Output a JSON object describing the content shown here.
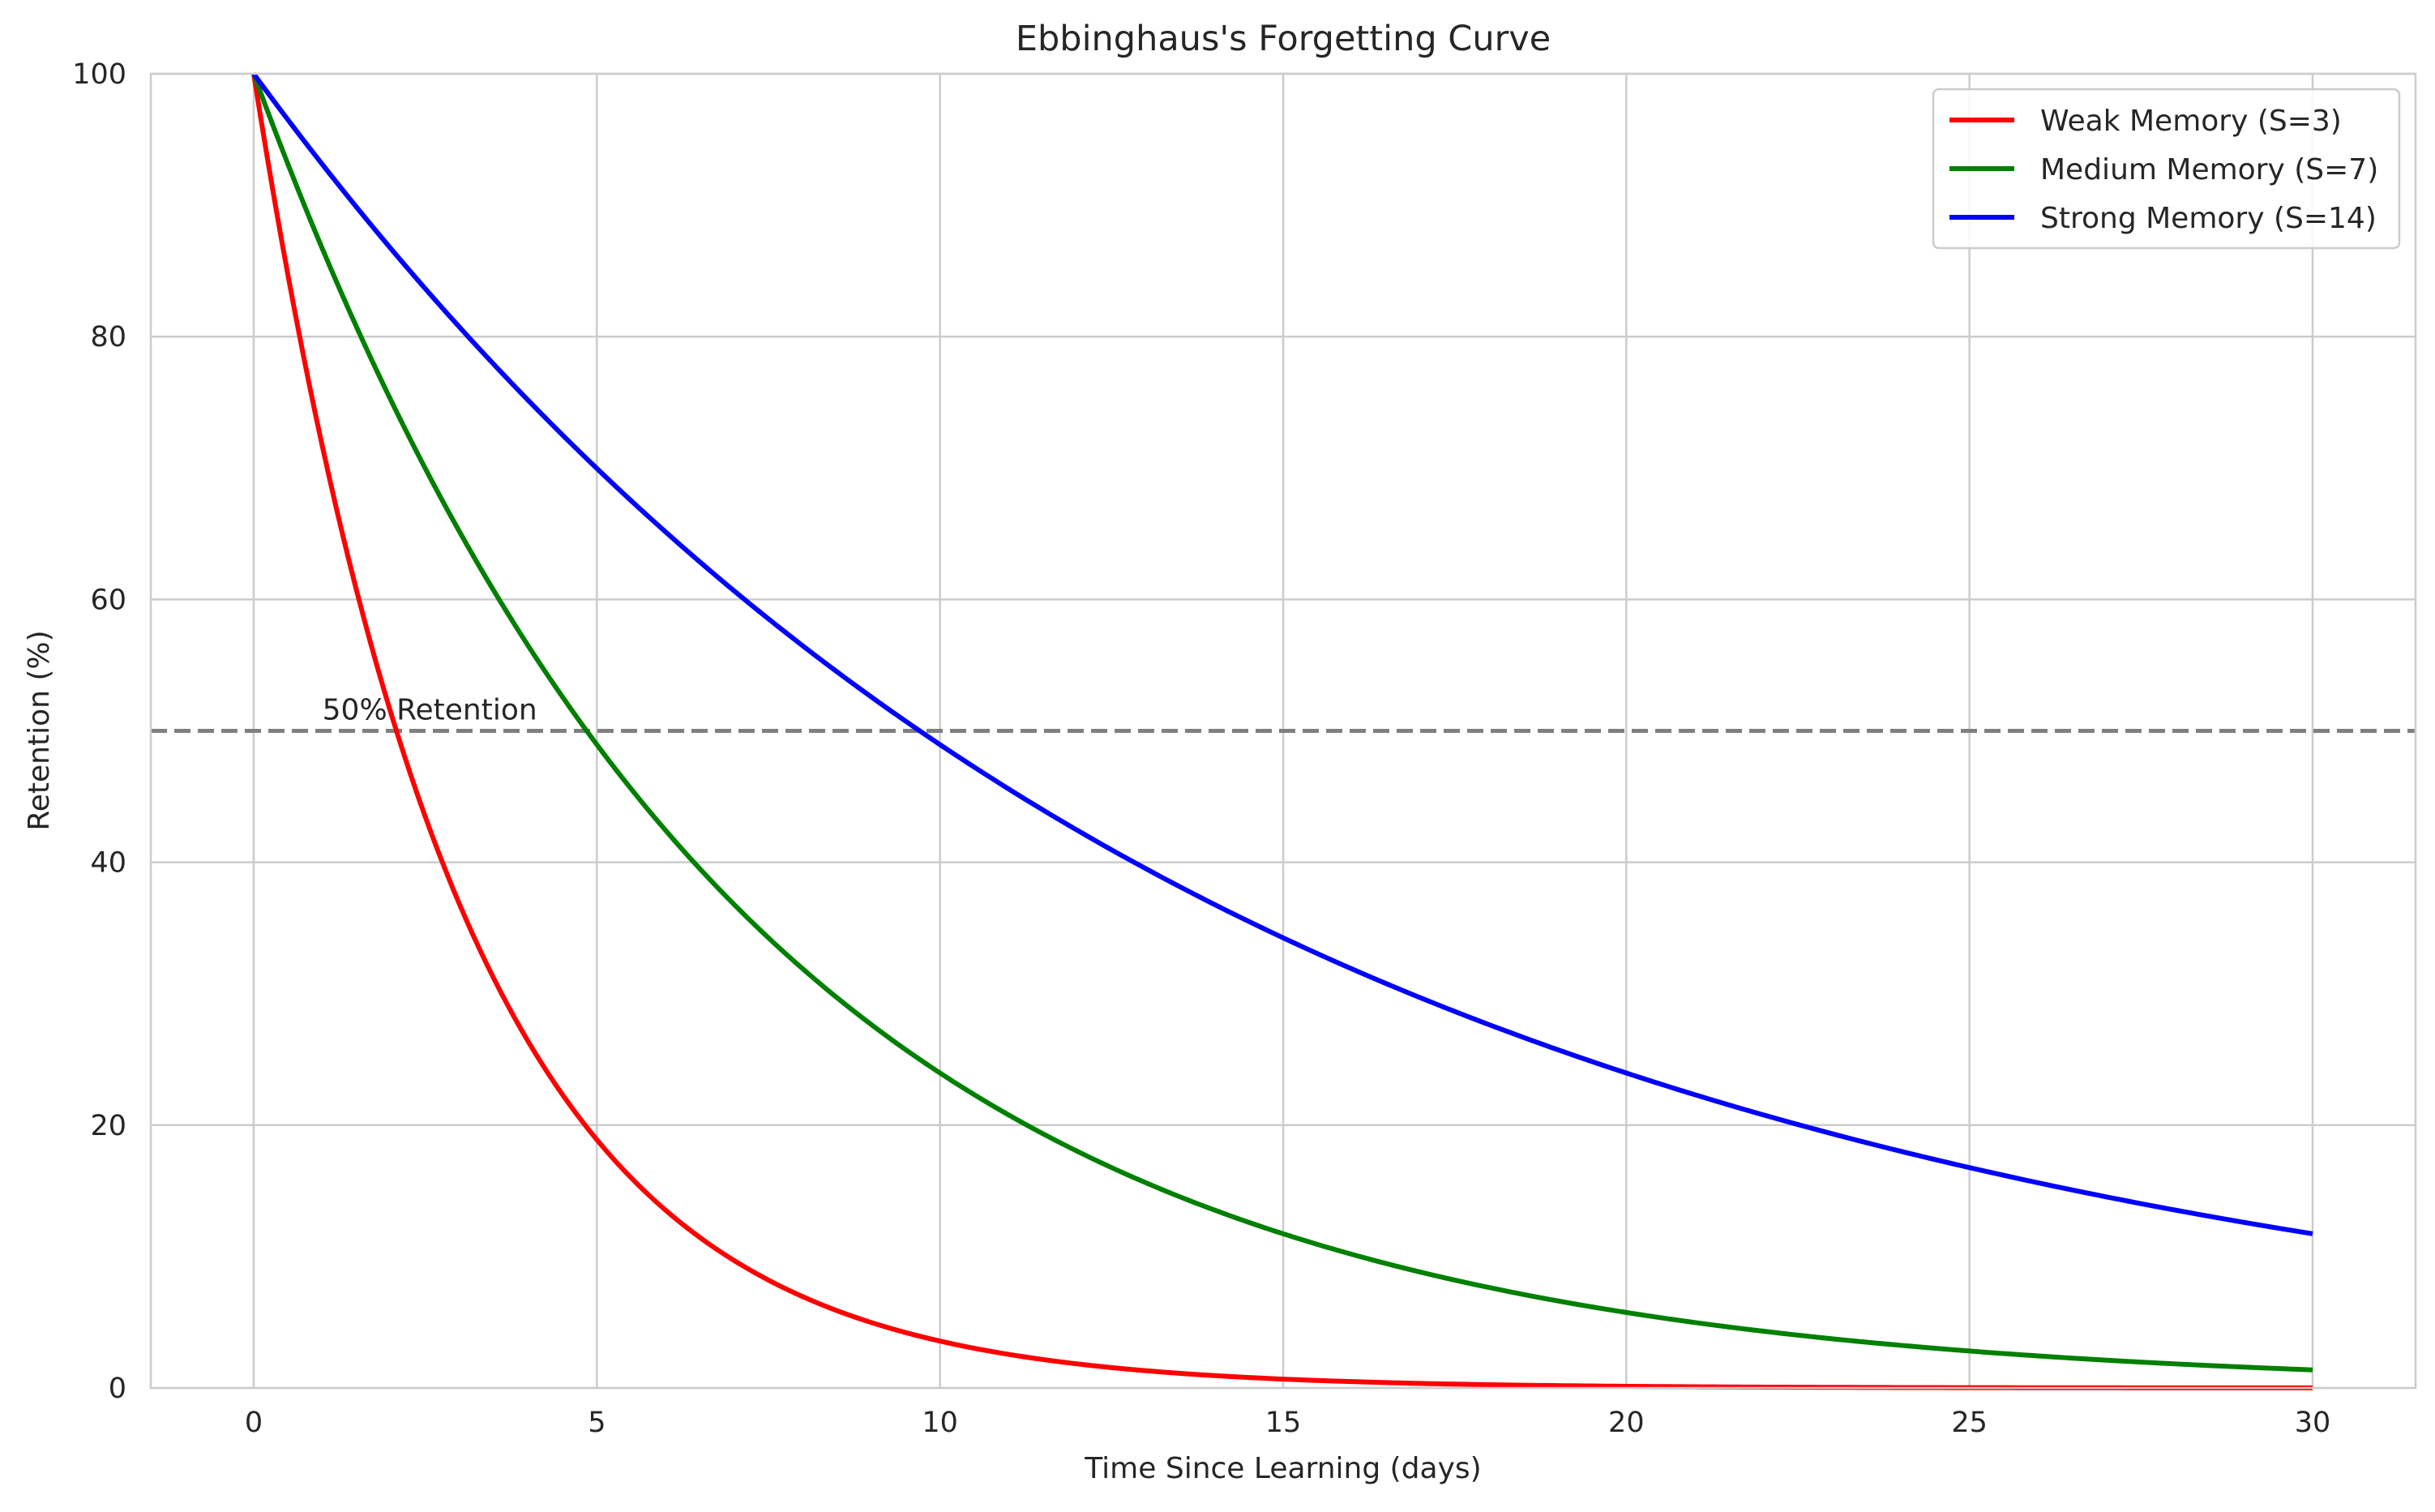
{
  "chart_data": {
    "type": "line",
    "title": "Ebbinghaus's Forgetting Curve",
    "xlabel": "Time Since Learning (days)",
    "ylabel": "Retention (%)",
    "xlim": [
      -1.5,
      31.5
    ],
    "ylim": [
      0,
      100
    ],
    "xticks": [
      0,
      5,
      10,
      15,
      20,
      25,
      30
    ],
    "yticks": [
      0,
      20,
      40,
      60,
      80,
      100
    ],
    "grid": true,
    "legend_position": "top-right",
    "model": "R = 100 * exp(-t / S)",
    "series": [
      {
        "name": "Weak Memory (S=3)",
        "S": 3,
        "color": "#ff0000",
        "x": [
          0,
          1,
          2,
          3,
          4,
          5,
          6,
          7,
          8,
          10,
          12,
          15,
          20,
          25,
          30
        ],
        "y": [
          100,
          71.7,
          51.3,
          36.8,
          26.4,
          18.9,
          13.5,
          9.7,
          7.0,
          3.6,
          1.8,
          0.7,
          0.1,
          0.0,
          0.0
        ]
      },
      {
        "name": "Medium Memory (S=7)",
        "S": 7,
        "color": "#008000",
        "x": [
          0,
          1,
          2,
          3,
          4,
          5,
          6,
          7,
          8,
          10,
          12,
          15,
          20,
          25,
          30
        ],
        "y": [
          100,
          86.7,
          75.1,
          65.1,
          56.5,
          49.0,
          42.4,
          36.8,
          31.9,
          24.0,
          18.0,
          11.7,
          5.7,
          2.8,
          1.4
        ]
      },
      {
        "name": "Strong Memory (S=14)",
        "S": 14,
        "color": "#0000ff",
        "x": [
          0,
          1,
          2,
          3,
          4,
          5,
          6,
          7,
          8,
          10,
          12,
          15,
          20,
          25,
          30
        ],
        "y": [
          100,
          93.1,
          86.7,
          80.7,
          75.1,
          70.0,
          65.1,
          60.7,
          56.5,
          49.0,
          42.4,
          34.3,
          24.0,
          16.8,
          11.7
        ]
      }
    ],
    "reference_line": {
      "y": 50,
      "style": "dashed",
      "color": "#808080",
      "label": "50% Retention",
      "label_x": 1
    }
  }
}
